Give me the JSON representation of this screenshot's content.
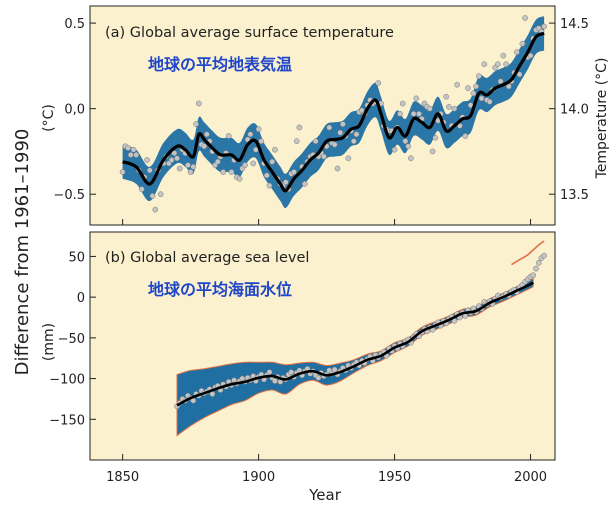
{
  "figure": {
    "ylabel": "Difference from 1961–1990",
    "xlabel": "Year",
    "x_ticks": [
      1850,
      1900,
      1950,
      2000
    ],
    "colors": {
      "panel_bg": "#fbf1ce",
      "band": "#1f6fa3",
      "line": "#000000",
      "points": "#c4c4c4",
      "jp_label": "#1f46c8",
      "sea_edge": "#e27044"
    }
  },
  "chart_data": [
    {
      "type": "line",
      "title": "(a) Global average surface temperature",
      "label_jp": "地球の平均地表気温",
      "ylabel": "(°C)",
      "y2label": "Temperature (°C)",
      "xlim": [
        1838,
        2009
      ],
      "ylim": [
        -0.68,
        0.6
      ],
      "y_ticks": [
        0.5,
        0.0,
        -0.5
      ],
      "y_tick_labels": [
        "0.5",
        "0,0",
        "−0.5"
      ],
      "y2_ticks": [
        14.5,
        14.0,
        13.5
      ],
      "y2_offset": 14.0,
      "x_smooth": [
        1850,
        1855,
        1860,
        1865,
        1870,
        1873,
        1876,
        1878,
        1880,
        1883,
        1886,
        1890,
        1893,
        1896,
        1899,
        1902,
        1905,
        1908,
        1910,
        1913,
        1916,
        1919,
        1922,
        1925,
        1928,
        1931,
        1934,
        1937,
        1940,
        1943,
        1945,
        1948,
        1951,
        1954,
        1957,
        1960,
        1963,
        1966,
        1969,
        1972,
        1975,
        1978,
        1981,
        1984,
        1987,
        1990,
        1993,
        1996,
        1999,
        2002,
        2005
      ],
      "y_smooth": [
        -0.31,
        -0.34,
        -0.44,
        -0.3,
        -0.22,
        -0.24,
        -0.28,
        -0.15,
        -0.18,
        -0.23,
        -0.27,
        -0.27,
        -0.3,
        -0.21,
        -0.19,
        -0.3,
        -0.37,
        -0.44,
        -0.48,
        -0.41,
        -0.36,
        -0.3,
        -0.26,
        -0.19,
        -0.18,
        -0.17,
        -0.12,
        -0.1,
        0.0,
        0.05,
        -0.03,
        -0.17,
        -0.11,
        -0.16,
        -0.06,
        -0.08,
        -0.11,
        -0.03,
        -0.13,
        -0.1,
        -0.06,
        -0.04,
        0.09,
        0.08,
        0.12,
        0.14,
        0.17,
        0.25,
        0.33,
        0.42,
        0.44
      ],
      "band_half_width": 0.1,
      "points": [
        [
          1850,
          -0.37
        ],
        [
          1851,
          -0.22
        ],
        [
          1852,
          -0.23
        ],
        [
          1853,
          -0.27
        ],
        [
          1854,
          -0.24
        ],
        [
          1855,
          -0.27
        ],
        [
          1856,
          -0.36
        ],
        [
          1857,
          -0.47
        ],
        [
          1858,
          -0.4
        ],
        [
          1859,
          -0.3
        ],
        [
          1860,
          -0.36
        ],
        [
          1861,
          -0.51
        ],
        [
          1862,
          -0.59
        ],
        [
          1863,
          -0.36
        ],
        [
          1864,
          -0.5
        ],
        [
          1865,
          -0.32
        ],
        [
          1866,
          -0.28
        ],
        [
          1867,
          -0.32
        ],
        [
          1868,
          -0.3
        ],
        [
          1869,
          -0.26
        ],
        [
          1870,
          -0.29
        ],
        [
          1871,
          -0.35
        ],
        [
          1872,
          -0.24
        ],
        [
          1873,
          -0.26
        ],
        [
          1874,
          -0.33
        ],
        [
          1875,
          -0.37
        ],
        [
          1876,
          -0.34
        ],
        [
          1877,
          -0.09
        ],
        [
          1878,
          0.03
        ],
        [
          1879,
          -0.21
        ],
        [
          1880,
          -0.22
        ],
        [
          1881,
          -0.15
        ],
        [
          1882,
          -0.19
        ],
        [
          1883,
          -0.25
        ],
        [
          1884,
          -0.33
        ],
        [
          1885,
          -0.31
        ],
        [
          1886,
          -0.28
        ],
        [
          1887,
          -0.37
        ],
        [
          1888,
          -0.26
        ],
        [
          1889,
          -0.16
        ],
        [
          1890,
          -0.37
        ],
        [
          1891,
          -0.3
        ],
        [
          1892,
          -0.4
        ],
        [
          1893,
          -0.41
        ],
        [
          1894,
          -0.35
        ],
        [
          1895,
          -0.33
        ],
        [
          1896,
          -0.18
        ],
        [
          1897,
          -0.15
        ],
        [
          1898,
          -0.32
        ],
        [
          1899,
          -0.24
        ],
        [
          1900,
          -0.12
        ],
        [
          1901,
          -0.19
        ],
        [
          1902,
          -0.32
        ],
        [
          1903,
          -0.39
        ],
        [
          1904,
          -0.45
        ],
        [
          1905,
          -0.31
        ],
        [
          1906,
          -0.24
        ],
        [
          1907,
          -0.41
        ],
        [
          1908,
          -0.44
        ],
        [
          1909,
          -0.45
        ],
        [
          1910,
          -0.43
        ],
        [
          1911,
          -0.47
        ],
        [
          1912,
          -0.38
        ],
        [
          1913,
          -0.37
        ],
        [
          1914,
          -0.19
        ],
        [
          1915,
          -0.11
        ],
        [
          1916,
          -0.34
        ],
        [
          1917,
          -0.44
        ],
        [
          1918,
          -0.31
        ],
        [
          1919,
          -0.28
        ],
        [
          1920,
          -0.27
        ],
        [
          1921,
          -0.19
        ],
        [
          1922,
          -0.28
        ],
        [
          1923,
          -0.26
        ],
        [
          1924,
          -0.28
        ],
        [
          1925,
          -0.22
        ],
        [
          1926,
          -0.11
        ],
        [
          1927,
          -0.2
        ],
        [
          1928,
          -0.21
        ],
        [
          1929,
          -0.35
        ],
        [
          1930,
          -0.14
        ],
        [
          1931,
          -0.09
        ],
        [
          1932,
          -0.16
        ],
        [
          1933,
          -0.29
        ],
        [
          1934,
          -0.13
        ],
        [
          1935,
          -0.19
        ],
        [
          1936,
          -0.15
        ],
        [
          1937,
          -0.02
        ],
        [
          1938,
          -0.01
        ],
        [
          1939,
          -0.03
        ],
        [
          1940,
          0.02
        ],
        [
          1941,
          0.05
        ],
        [
          1942,
          0.03
        ],
        [
          1943,
          0.04
        ],
        [
          1944,
          0.15
        ],
        [
          1945,
          0.03
        ],
        [
          1946,
          -0.1
        ],
        [
          1947,
          -0.12
        ],
        [
          1948,
          -0.13
        ],
        [
          1949,
          -0.13
        ],
        [
          1950,
          -0.24
        ],
        [
          1951,
          -0.11
        ],
        [
          1952,
          -0.03
        ],
        [
          1953,
          0.03
        ],
        [
          1954,
          -0.19
        ],
        [
          1955,
          -0.22
        ],
        [
          1956,
          -0.29
        ],
        [
          1957,
          -0.03
        ],
        [
          1958,
          0.06
        ],
        [
          1959,
          -0.03
        ],
        [
          1960,
          -0.06
        ],
        [
          1961,
          0.03
        ],
        [
          1962,
          0.01
        ],
        [
          1963,
          0.0
        ],
        [
          1964,
          -0.25
        ],
        [
          1965,
          -0.17
        ],
        [
          1966,
          -0.07
        ],
        [
          1967,
          -0.03
        ],
        [
          1968,
          -0.08
        ],
        [
          1969,
          0.07
        ],
        [
          1970,
          0.01
        ],
        [
          1971,
          -0.1
        ],
        [
          1972,
          0.0
        ],
        [
          1973,
          0.14
        ],
        [
          1974,
          -0.1
        ],
        [
          1975,
          -0.05
        ],
        [
          1976,
          -0.16
        ],
        [
          1977,
          0.12
        ],
        [
          1978,
          0.02
        ],
        [
          1979,
          0.09
        ],
        [
          1980,
          0.13
        ],
        [
          1981,
          0.19
        ],
        [
          1982,
          0.06
        ],
        [
          1983,
          0.26
        ],
        [
          1984,
          0.05
        ],
        [
          1985,
          0.04
        ],
        [
          1986,
          0.11
        ],
        [
          1987,
          0.24
        ],
        [
          1988,
          0.26
        ],
        [
          1989,
          0.16
        ],
        [
          1990,
          0.31
        ],
        [
          1991,
          0.26
        ],
        [
          1992,
          0.13
        ],
        [
          1993,
          0.16
        ],
        [
          1994,
          0.21
        ],
        [
          1995,
          0.33
        ],
        [
          1996,
          0.2
        ],
        [
          1997,
          0.38
        ],
        [
          1998,
          0.53
        ],
        [
          1999,
          0.3
        ],
        [
          2000,
          0.31
        ],
        [
          2001,
          0.41
        ],
        [
          2002,
          0.46
        ],
        [
          2003,
          0.47
        ],
        [
          2004,
          0.45
        ],
        [
          2005,
          0.48
        ]
      ]
    },
    {
      "type": "line",
      "title": "(b) Global average sea level",
      "label_jp": "地球の平均海面水位",
      "ylabel": "(mm)",
      "xlim": [
        1838,
        2009
      ],
      "ylim": [
        -200,
        80
      ],
      "y_ticks": [
        50,
        0,
        -50,
        -100,
        -150
      ],
      "y_tick_labels": [
        "50",
        "0",
        "−50",
        "−100",
        "−150"
      ],
      "x_smooth": [
        1870,
        1875,
        1880,
        1885,
        1890,
        1895,
        1900,
        1905,
        1910,
        1915,
        1920,
        1925,
        1930,
        1935,
        1940,
        1945,
        1950,
        1955,
        1960,
        1965,
        1970,
        1975,
        1980,
        1985,
        1990,
        1995,
        2000,
        2001
      ],
      "y_smooth": [
        -133,
        -124,
        -118,
        -112,
        -107,
        -104,
        -99,
        -97,
        -101,
        -94,
        -91,
        -96,
        -92,
        -85,
        -77,
        -72,
        -62,
        -55,
        -42,
        -35,
        -28,
        -20,
        -17,
        -7,
        0,
        8,
        16,
        18
      ],
      "band_upper": [
        -95,
        -90,
        -88,
        -85,
        -82,
        -80,
        -80,
        -80,
        -83,
        -81,
        -80,
        -84,
        -81,
        -77,
        -70,
        -66,
        -56,
        -50,
        -37,
        -30,
        -23,
        -15,
        -12,
        -2,
        5,
        13,
        21,
        23
      ],
      "band_lower": [
        -170,
        -158,
        -148,
        -140,
        -132,
        -127,
        -118,
        -114,
        -119,
        -107,
        -102,
        -108,
        -103,
        -93,
        -84,
        -78,
        -68,
        -60,
        -47,
        -40,
        -33,
        -25,
        -22,
        -12,
        -5,
        3,
        11,
        13
      ],
      "satellite_x": [
        1993,
        1995,
        1997,
        1999,
        2001,
        2003,
        2005
      ],
      "satellite_y": [
        40,
        44,
        48,
        52,
        58,
        64,
        69
      ],
      "points": [
        [
          1870,
          -134
        ],
        [
          1871,
          -130
        ],
        [
          1872,
          -125
        ],
        [
          1873,
          -127
        ],
        [
          1874,
          -121
        ],
        [
          1875,
          -124
        ],
        [
          1876,
          -127
        ],
        [
          1877,
          -119
        ],
        [
          1878,
          -121
        ],
        [
          1879,
          -115
        ],
        [
          1880,
          -118
        ],
        [
          1881,
          -116
        ],
        [
          1882,
          -113
        ],
        [
          1883,
          -119
        ],
        [
          1884,
          -111
        ],
        [
          1885,
          -109
        ],
        [
          1886,
          -114
        ],
        [
          1887,
          -107
        ],
        [
          1888,
          -110
        ],
        [
          1889,
          -104
        ],
        [
          1890,
          -108
        ],
        [
          1891,
          -102
        ],
        [
          1892,
          -106
        ],
        [
          1893,
          -103
        ],
        [
          1894,
          -100
        ],
        [
          1895,
          -104
        ],
        [
          1896,
          -99
        ],
        [
          1897,
          -102
        ],
        [
          1898,
          -97
        ],
        [
          1899,
          -103
        ],
        [
          1900,
          -98
        ],
        [
          1901,
          -95
        ],
        [
          1902,
          -101
        ],
        [
          1903,
          -96
        ],
        [
          1904,
          -92
        ],
        [
          1905,
          -99
        ],
        [
          1906,
          -103
        ],
        [
          1907,
          -98
        ],
        [
          1908,
          -104
        ],
        [
          1909,
          -99
        ],
        [
          1910,
          -101
        ],
        [
          1911,
          -95
        ],
        [
          1912,
          -92
        ],
        [
          1913,
          -98
        ],
        [
          1914,
          -93
        ],
        [
          1915,
          -90
        ],
        [
          1916,
          -96
        ],
        [
          1917,
          -91
        ],
        [
          1918,
          -88
        ],
        [
          1919,
          -94
        ],
        [
          1920,
          -91
        ],
        [
          1921,
          -96
        ],
        [
          1922,
          -99
        ],
        [
          1923,
          -93
        ],
        [
          1924,
          -97
        ],
        [
          1925,
          -95
        ],
        [
          1926,
          -90
        ],
        [
          1927,
          -94
        ],
        [
          1928,
          -89
        ],
        [
          1929,
          -95
        ],
        [
          1930,
          -91
        ],
        [
          1931,
          -87
        ],
        [
          1932,
          -90
        ],
        [
          1933,
          -84
        ],
        [
          1934,
          -87
        ],
        [
          1935,
          -83
        ],
        [
          1936,
          -80
        ],
        [
          1937,
          -84
        ],
        [
          1938,
          -78
        ],
        [
          1939,
          -81
        ],
        [
          1940,
          -76
        ],
        [
          1941,
          -73
        ],
        [
          1942,
          -78
        ],
        [
          1943,
          -71
        ],
        [
          1944,
          -74
        ],
        [
          1945,
          -70
        ],
        [
          1946,
          -67
        ],
        [
          1947,
          -72
        ],
        [
          1948,
          -63
        ],
        [
          1949,
          -66
        ],
        [
          1950,
          -60
        ],
        [
          1951,
          -63
        ],
        [
          1952,
          -57
        ],
        [
          1953,
          -60
        ],
        [
          1954,
          -54
        ],
        [
          1955,
          -52
        ],
        [
          1956,
          -56
        ],
        [
          1957,
          -49
        ],
        [
          1958,
          -45
        ],
        [
          1959,
          -48
        ],
        [
          1960,
          -43
        ],
        [
          1961,
          -39
        ],
        [
          1962,
          -42
        ],
        [
          1963,
          -37
        ],
        [
          1964,
          -40
        ],
        [
          1965,
          -34
        ],
        [
          1966,
          -31
        ],
        [
          1967,
          -35
        ],
        [
          1968,
          -29
        ],
        [
          1969,
          -32
        ],
        [
          1970,
          -27
        ],
        [
          1971,
          -24
        ],
        [
          1972,
          -29
        ],
        [
          1973,
          -21
        ],
        [
          1974,
          -25
        ],
        [
          1975,
          -19
        ],
        [
          1976,
          -23
        ],
        [
          1977,
          -16
        ],
        [
          1978,
          -19
        ],
        [
          1979,
          -14
        ],
        [
          1980,
          -18
        ],
        [
          1981,
          -11
        ],
        [
          1982,
          -14
        ],
        [
          1983,
          -6
        ],
        [
          1984,
          -9
        ],
        [
          1985,
          -5
        ],
        [
          1986,
          -8
        ],
        [
          1987,
          -2
        ],
        [
          1988,
          2
        ],
        [
          1989,
          -1
        ],
        [
          1990,
          1
        ],
        [
          1991,
          4
        ],
        [
          1992,
          2
        ],
        [
          1993,
          7
        ],
        [
          1994,
          9
        ],
        [
          1995,
          6
        ],
        [
          1996,
          12
        ],
        [
          1997,
          15
        ],
        [
          1998,
          19
        ],
        [
          1999,
          22
        ],
        [
          2000,
          25
        ],
        [
          2001,
          27
        ],
        [
          2002,
          35
        ],
        [
          2003,
          42
        ],
        [
          2004,
          48
        ],
        [
          2005,
          51
        ]
      ]
    }
  ]
}
